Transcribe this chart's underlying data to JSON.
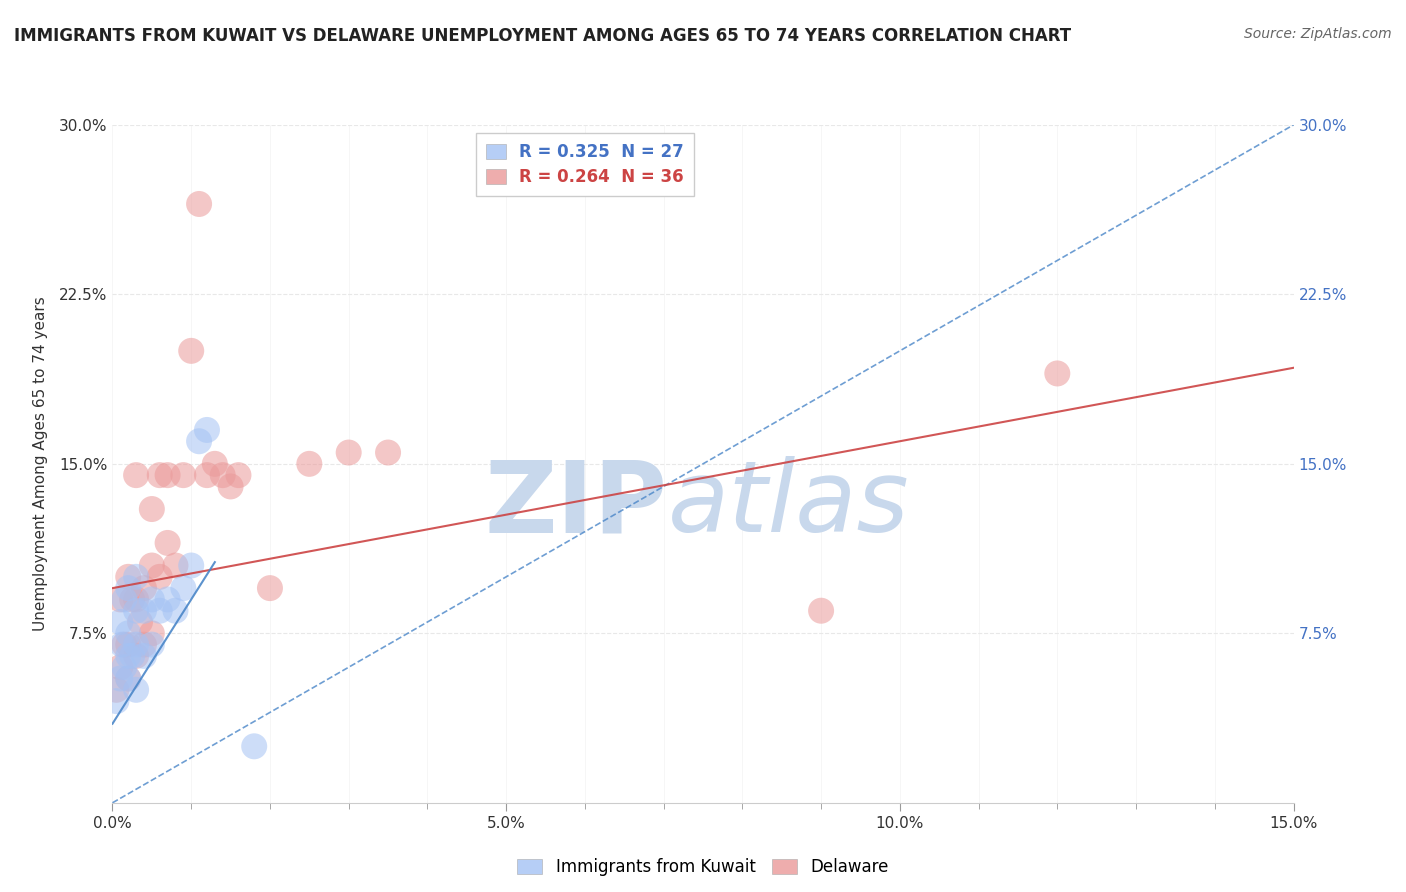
{
  "title": "IMMIGRANTS FROM KUWAIT VS DELAWARE UNEMPLOYMENT AMONG AGES 65 TO 74 YEARS CORRELATION CHART",
  "source": "Source: ZipAtlas.com",
  "ylabel": "Unemployment Among Ages 65 to 74 years",
  "xlim": [
    0,
    0.15
  ],
  "ylim": [
    0,
    0.3
  ],
  "ytick_positions": [
    0.0,
    0.075,
    0.15,
    0.225,
    0.3
  ],
  "ytick_labels_left": [
    "",
    "7.5%",
    "15.0%",
    "22.5%",
    "30.0%"
  ],
  "ytick_labels_right": [
    "",
    "7.5%",
    "15.0%",
    "22.5%",
    "30.0%"
  ],
  "xtick_major": [
    0.0,
    0.05,
    0.1,
    0.15
  ],
  "xtick_labels": [
    "0.0%",
    "5.0%",
    "10.0%",
    "15.0%"
  ],
  "series1_name": "Immigrants from Kuwait",
  "series1_color": "#a4c2f4",
  "series1_line_color": "#4a86c8",
  "series1_R": 0.325,
  "series1_N": 27,
  "series1_x": [
    0.0005,
    0.001,
    0.001,
    0.0012,
    0.0015,
    0.0015,
    0.002,
    0.002,
    0.002,
    0.002,
    0.0025,
    0.003,
    0.003,
    0.003,
    0.003,
    0.004,
    0.004,
    0.005,
    0.005,
    0.006,
    0.007,
    0.008,
    0.009,
    0.01,
    0.011,
    0.012,
    0.018
  ],
  "series1_y": [
    0.045,
    0.055,
    0.08,
    0.07,
    0.06,
    0.09,
    0.055,
    0.065,
    0.075,
    0.095,
    0.065,
    0.05,
    0.07,
    0.085,
    0.1,
    0.065,
    0.085,
    0.07,
    0.09,
    0.085,
    0.09,
    0.085,
    0.095,
    0.105,
    0.16,
    0.165,
    0.025
  ],
  "series2_name": "Delaware",
  "series2_color": "#ea9999",
  "series2_line_color": "#cc4444",
  "series2_R": 0.264,
  "series2_N": 36,
  "series2_x": [
    0.0005,
    0.001,
    0.001,
    0.0015,
    0.002,
    0.002,
    0.002,
    0.0025,
    0.003,
    0.003,
    0.003,
    0.0035,
    0.004,
    0.004,
    0.005,
    0.005,
    0.005,
    0.006,
    0.006,
    0.007,
    0.007,
    0.008,
    0.009,
    0.01,
    0.011,
    0.012,
    0.013,
    0.014,
    0.015,
    0.016,
    0.02,
    0.025,
    0.03,
    0.035,
    0.09,
    0.12
  ],
  "series2_y": [
    0.05,
    0.06,
    0.09,
    0.07,
    0.055,
    0.07,
    0.1,
    0.09,
    0.065,
    0.09,
    0.145,
    0.08,
    0.07,
    0.095,
    0.075,
    0.105,
    0.13,
    0.1,
    0.145,
    0.115,
    0.145,
    0.105,
    0.145,
    0.2,
    0.265,
    0.145,
    0.15,
    0.145,
    0.14,
    0.145,
    0.095,
    0.15,
    0.155,
    0.155,
    0.085,
    0.19
  ],
  "watermark_zip": "ZIP",
  "watermark_atlas": "atlas",
  "watermark_color": "#c8d8ec",
  "background_color": "#ffffff",
  "grid_color": "#e8e8e8",
  "title_fontsize": 12,
  "axis_label_fontsize": 11,
  "tick_fontsize": 11,
  "legend_fontsize": 12,
  "source_fontsize": 10,
  "trendline1_intercept": 0.0,
  "trendline1_slope": 2.0,
  "trendline2_intercept": 0.095,
  "trendline2_slope": 0.65
}
